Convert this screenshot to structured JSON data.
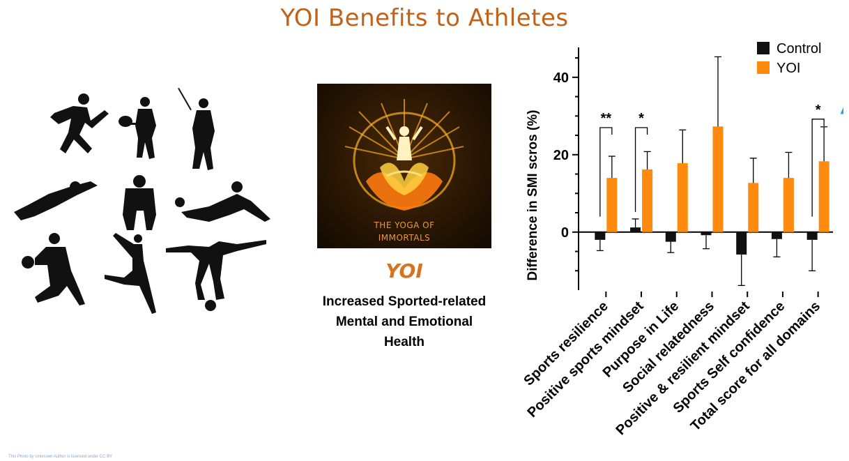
{
  "header": {
    "title": "YOI Benefits to Athletes"
  },
  "left_panel": {
    "silhouette_icons": [
      "runner-icon",
      "tennis-player-icon",
      "golfer-icon",
      "diving-goalkeeper-icon",
      "sprinter-start-icon",
      "volleyball-player-icon",
      "basketball-player-icon",
      "dancer-icon",
      "handstand-icon"
    ]
  },
  "center_panel": {
    "logo_text_line1": "THE YOGA OF",
    "logo_text_line2": "IMMORTALS",
    "label": "YOI",
    "description_line1": "Increased Sported-related",
    "description_line2": "Mental and Emotional",
    "description_line3": "Health"
  },
  "colors": {
    "title": "#c0621a",
    "control": "#111111",
    "yoi": "#ff8a10",
    "arrow": "#1aa3e0"
  },
  "chart_data": {
    "type": "bar",
    "ylabel": "Difference in SMI scros (%)",
    "ylim": [
      -15,
      47
    ],
    "yticks": [
      0,
      20,
      40
    ],
    "categories": [
      "Sports resilience",
      "Positive sports mindset",
      "Purpose in Life",
      "Social relatedness",
      "Positive & resilient mindset",
      "Sports Self confidence",
      "Total score for all domains"
    ],
    "series": [
      {
        "name": "Control",
        "values": [
          -2.0,
          1.2,
          -2.5,
          -0.8,
          -5.8,
          -1.8,
          -2.0
        ],
        "errors": [
          2.8,
          2.2,
          2.8,
          3.5,
          8.0,
          4.6,
          8.0
        ]
      },
      {
        "name": "YOI",
        "values": [
          14.0,
          16.2,
          17.8,
          27.3,
          12.7,
          14.0,
          18.3
        ],
        "errors": [
          5.6,
          4.6,
          8.6,
          18.0,
          6.4,
          6.6,
          8.9
        ]
      }
    ],
    "significance": [
      {
        "category_index": 0,
        "label": "**"
      },
      {
        "category_index": 1,
        "label": "*"
      },
      {
        "category_index": 6,
        "label": "*"
      }
    ],
    "legend": {
      "placement": "top-right"
    },
    "grid": false
  },
  "footnote": "This Photo by Unknown Author is licensed under CC BY"
}
